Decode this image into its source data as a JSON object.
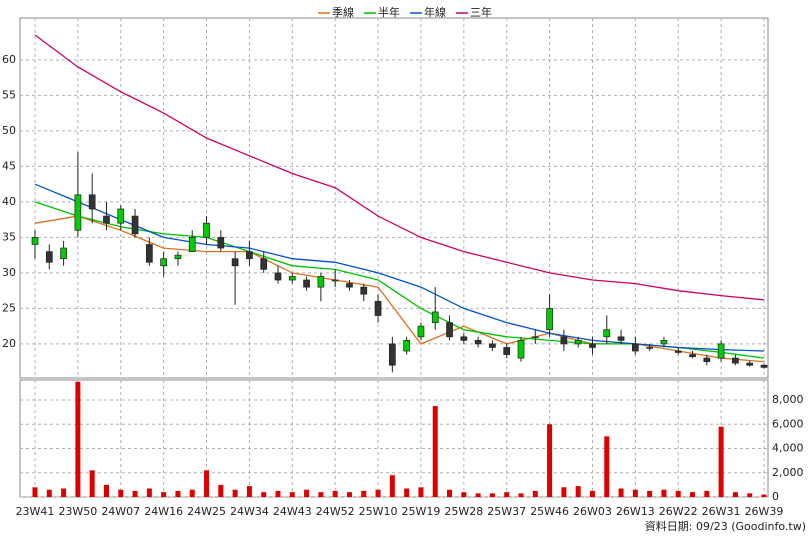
{
  "chart_data": {
    "type": "candlestick",
    "categories": [
      "23W41",
      null,
      null,
      "23W50",
      null,
      null,
      "24W07",
      null,
      null,
      "24W16",
      null,
      null,
      "24W25",
      null,
      null,
      "24W34",
      null,
      null,
      "24W43",
      null,
      null,
      "24W52",
      null,
      null,
      "25W10",
      null,
      null,
      "25W19",
      null,
      null,
      "25W28",
      null,
      null,
      "25W37",
      null,
      null,
      "25W46",
      null,
      null,
      "26W03",
      null,
      null,
      "26W13",
      null,
      null,
      "26W22",
      null,
      null,
      "26W31",
      null,
      null,
      "26W39"
    ],
    "candles": [
      [
        34,
        36,
        32,
        35
      ],
      [
        33,
        34,
        30.5,
        31.5
      ],
      [
        32,
        34.5,
        31,
        33.5
      ],
      [
        36,
        47,
        35,
        41
      ],
      [
        41,
        44,
        37,
        39
      ],
      [
        38,
        40,
        36,
        37
      ],
      [
        37,
        39.5,
        36,
        39
      ],
      [
        38,
        39,
        35,
        35.5
      ],
      [
        34,
        35,
        31,
        31.5
      ],
      [
        31,
        33,
        29.5,
        32
      ],
      [
        32,
        33,
        31,
        32.5
      ],
      [
        33,
        36,
        33,
        35
      ],
      [
        35,
        38,
        34,
        37
      ],
      [
        35,
        36,
        33,
        33.5
      ],
      [
        32,
        33,
        25.5,
        31
      ],
      [
        33,
        34.5,
        31,
        32
      ],
      [
        32,
        33,
        30,
        30.5
      ],
      [
        30,
        31,
        28.5,
        29
      ],
      [
        29,
        30,
        28.5,
        29.5
      ],
      [
        29,
        29.5,
        27.5,
        28
      ],
      [
        28,
        30,
        26,
        29.5
      ],
      [
        29,
        30.5,
        28,
        29
      ],
      [
        28.5,
        29,
        27.5,
        28
      ],
      [
        28,
        28.5,
        26,
        27
      ],
      [
        26,
        27,
        23,
        24
      ],
      [
        20,
        21,
        16,
        17
      ],
      [
        19,
        21,
        18.5,
        20.5
      ],
      [
        21,
        23,
        20.5,
        22.5
      ],
      [
        23,
        28,
        22,
        24.5
      ],
      [
        23,
        24,
        20.5,
        21
      ],
      [
        21,
        21.5,
        20,
        20.5
      ],
      [
        20.5,
        21,
        19.5,
        20
      ],
      [
        20,
        20.5,
        19,
        19.5
      ],
      [
        19.5,
        20,
        18,
        18.5
      ],
      [
        18,
        21,
        17.5,
        20.5
      ],
      [
        21,
        22,
        20,
        21
      ],
      [
        22,
        27,
        21,
        25
      ],
      [
        21,
        22,
        19,
        20
      ],
      [
        20,
        21,
        19.5,
        20.5
      ],
      [
        20,
        21,
        18.5,
        19.5
      ],
      [
        21,
        24,
        20,
        22
      ],
      [
        21,
        22,
        20,
        20.5
      ],
      [
        20,
        21,
        18.5,
        19
      ],
      [
        19.5,
        20,
        19,
        19.5
      ],
      [
        20,
        21,
        19.5,
        20.5
      ],
      [
        19,
        19.5,
        18.5,
        18.8
      ],
      [
        18.5,
        19,
        18,
        18.2
      ],
      [
        18,
        18.5,
        17,
        17.5
      ],
      [
        18,
        20.5,
        17.5,
        20
      ],
      [
        18,
        18.5,
        17,
        17.3
      ],
      [
        17.3,
        17.6,
        16.8,
        17
      ],
      [
        17,
        17.2,
        16.5,
        16.7
      ]
    ],
    "volume": [
      800,
      600,
      700,
      9500,
      2200,
      1000,
      600,
      500,
      700,
      400,
      500,
      600,
      2200,
      1000,
      600,
      900,
      400,
      500,
      400,
      600,
      400,
      500,
      400,
      500,
      600,
      1800,
      700,
      800,
      7500,
      600,
      400,
      300,
      300,
      400,
      300,
      500,
      6000,
      800,
      900,
      500,
      5000,
      700,
      600,
      500,
      600,
      500,
      400,
      500,
      5800,
      400,
      300,
      200
    ],
    "series": [
      {
        "name": "季線",
        "color": "#e07020",
        "x": [
          0,
          3,
          6,
          9,
          12,
          15,
          18,
          21,
          24,
          27,
          30,
          33,
          36,
          39,
          42,
          45,
          48,
          51
        ],
        "values": [
          37,
          38,
          36,
          33.5,
          33,
          33,
          30,
          29,
          28,
          20,
          22.5,
          20,
          21.5,
          20,
          20,
          19,
          18,
          17.5
        ]
      },
      {
        "name": "半年",
        "color": "#00c000",
        "x": [
          0,
          3,
          6,
          9,
          12,
          15,
          18,
          21,
          24,
          27,
          30,
          33,
          36,
          39,
          42,
          45,
          48,
          51
        ],
        "values": [
          40,
          38,
          36.5,
          35.5,
          35,
          33,
          31,
          30.5,
          29,
          25,
          22,
          21,
          20.5,
          20,
          20,
          19.5,
          18.8,
          18
        ]
      },
      {
        "name": "年線",
        "color": "#0050d0",
        "x": [
          0,
          3,
          6,
          9,
          12,
          15,
          18,
          21,
          24,
          27,
          30,
          33,
          36,
          39,
          42,
          45,
          48,
          51
        ],
        "values": [
          42.5,
          40,
          37.5,
          35,
          34,
          33.5,
          32,
          31.5,
          30,
          28,
          25,
          23,
          21.5,
          20.5,
          20,
          19.5,
          19.2,
          19
        ]
      },
      {
        "name": "三年",
        "color": "#cc0066",
        "x": [
          0,
          3,
          6,
          9,
          12,
          15,
          18,
          21,
          24,
          27,
          30,
          33,
          36,
          39,
          42,
          45,
          48,
          51
        ],
        "values": [
          63.5,
          59,
          55.5,
          52.5,
          49,
          46.5,
          44,
          42,
          38,
          35,
          33,
          31.5,
          30,
          29,
          28.5,
          27.5,
          26.8,
          26.2
        ]
      }
    ],
    "candle_colors": {
      "up": "#00cc00",
      "down": "#333333"
    },
    "volume_color": "#dd0000",
    "ylim": [
      15.2,
      65.9
    ],
    "yticks": [
      20,
      25,
      30,
      35,
      40,
      45,
      50,
      55,
      60
    ],
    "y2lim": [
      0,
      9650
    ],
    "y2ticks": [
      0,
      {
        "value": 2000,
        "label": "2,000"
      },
      {
        "value": 4000,
        "label": "4,000"
      },
      {
        "value": 6000,
        "label": "6,000"
      },
      {
        "value": 8000,
        "label": "8,000"
      }
    ],
    "grid": true,
    "note": "資料日期: 09/23 (Goodinfo.tw)"
  }
}
